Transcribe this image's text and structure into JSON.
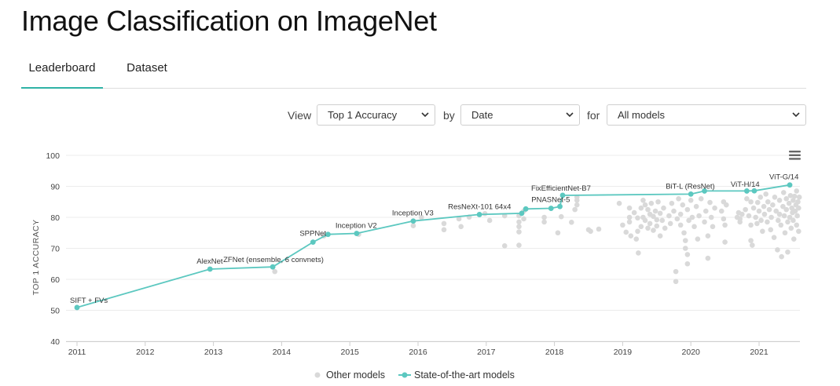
{
  "page": {
    "title": "Image Classification on ImageNet"
  },
  "tabs": [
    {
      "label": "Leaderboard",
      "active": true
    },
    {
      "label": "Dataset",
      "active": false
    }
  ],
  "controls": {
    "view_label": "View",
    "view_value": "Top 1 Accuracy",
    "by_label": "by",
    "by_value": "Date",
    "for_label": "for",
    "for_value": "All models"
  },
  "chart_menu_icon": "hamburger-menu-icon",
  "colors": {
    "accent": "#2fb3a6",
    "sota_line": "#5cc8c0",
    "other_points": "#d9d9d9"
  },
  "chart_data": {
    "type": "scatter",
    "ylabel": "TOP 1 ACCURACY",
    "xlabel": "",
    "ylim": [
      40,
      100
    ],
    "yticks": [
      40,
      50,
      60,
      70,
      80,
      90,
      100
    ],
    "xlim": [
      2011.0,
      2021.6
    ],
    "xticks": [
      "2011",
      "2012",
      "2013",
      "2014",
      "2015",
      "2016",
      "2017",
      "2018",
      "2019",
      "2020",
      "2021"
    ],
    "grid": true,
    "legend": {
      "placement": "bottom",
      "entries": [
        "Other models",
        "State-of-the-art models"
      ]
    },
    "series": [
      {
        "name": "State-of-the-art models",
        "style": "line",
        "points": [
          {
            "x": 2011.0,
            "y": 50.9,
            "label": "SIFT + FVs"
          },
          {
            "x": 2012.95,
            "y": 63.3,
            "label": "AlexNet"
          },
          {
            "x": 2013.87,
            "y": 64.0,
            "label": "ZFNet (ensemble, 6 convnets)"
          },
          {
            "x": 2014.46,
            "y": 72.0,
            "label": "SPPNet"
          },
          {
            "x": 2014.68,
            "y": 74.5,
            "label": ""
          },
          {
            "x": 2015.1,
            "y": 74.8,
            "label": "Inception V2"
          },
          {
            "x": 2015.93,
            "y": 78.8,
            "label": "Inception V3"
          },
          {
            "x": 2016.9,
            "y": 80.9,
            "label": "ResNeXt-101 64x4"
          },
          {
            "x": 2017.52,
            "y": 81.3,
            "label": ""
          },
          {
            "x": 2017.58,
            "y": 82.7,
            "label": ""
          },
          {
            "x": 2017.95,
            "y": 82.9,
            "label": "PNASNet-5"
          },
          {
            "x": 2018.08,
            "y": 83.5,
            "label": ""
          },
          {
            "x": 2018.12,
            "y": 87.1,
            "label": "FixEfficientNet-B7"
          },
          {
            "x": 2020.0,
            "y": 87.5,
            "label": "BiT-L (ResNet)"
          },
          {
            "x": 2020.2,
            "y": 88.5,
            "label": ""
          },
          {
            "x": 2020.82,
            "y": 88.5,
            "label": ""
          },
          {
            "x": 2020.93,
            "y": 88.55,
            "label": "ViT-H/14"
          },
          {
            "x": 2021.45,
            "y": 90.45,
            "label": "ViT-G/14"
          }
        ]
      },
      {
        "name": "Other models",
        "style": "points",
        "points": [
          {
            "x": 2013.9,
            "y": 62.5
          },
          {
            "x": 2014.62,
            "y": 74.0
          },
          {
            "x": 2015.13,
            "y": 74.5
          },
          {
            "x": 2015.93,
            "y": 77.3
          },
          {
            "x": 2016.05,
            "y": 80.0
          },
          {
            "x": 2016.38,
            "y": 78.0
          },
          {
            "x": 2016.38,
            "y": 76.0
          },
          {
            "x": 2016.6,
            "y": 79.5
          },
          {
            "x": 2016.63,
            "y": 77.0
          },
          {
            "x": 2016.75,
            "y": 80.1
          },
          {
            "x": 2016.98,
            "y": 81.2
          },
          {
            "x": 2017.05,
            "y": 79.0
          },
          {
            "x": 2017.27,
            "y": 80.5
          },
          {
            "x": 2017.27,
            "y": 70.8
          },
          {
            "x": 2017.48,
            "y": 80.5
          },
          {
            "x": 2017.48,
            "y": 78.5
          },
          {
            "x": 2017.48,
            "y": 77.0
          },
          {
            "x": 2017.48,
            "y": 75.3
          },
          {
            "x": 2017.48,
            "y": 71.0
          },
          {
            "x": 2017.55,
            "y": 82.0
          },
          {
            "x": 2017.55,
            "y": 79.5
          },
          {
            "x": 2017.85,
            "y": 80.0
          },
          {
            "x": 2017.85,
            "y": 78.5
          },
          {
            "x": 2018.05,
            "y": 75.0
          },
          {
            "x": 2018.1,
            "y": 80.2
          },
          {
            "x": 2018.25,
            "y": 78.4
          },
          {
            "x": 2018.3,
            "y": 82.5
          },
          {
            "x": 2018.33,
            "y": 84.0
          },
          {
            "x": 2018.33,
            "y": 85.5
          },
          {
            "x": 2018.33,
            "y": 86.5
          },
          {
            "x": 2018.5,
            "y": 76.0
          },
          {
            "x": 2018.53,
            "y": 75.5
          },
          {
            "x": 2018.65,
            "y": 76.2
          },
          {
            "x": 2018.95,
            "y": 84.5
          },
          {
            "x": 2019.0,
            "y": 77.5
          },
          {
            "x": 2019.05,
            "y": 75.2
          },
          {
            "x": 2019.1,
            "y": 80.0
          },
          {
            "x": 2019.1,
            "y": 83.0
          },
          {
            "x": 2019.1,
            "y": 78.5
          },
          {
            "x": 2019.12,
            "y": 74.0
          },
          {
            "x": 2019.17,
            "y": 81.5
          },
          {
            "x": 2019.2,
            "y": 73.0
          },
          {
            "x": 2019.22,
            "y": 79.8
          },
          {
            "x": 2019.22,
            "y": 75.5
          },
          {
            "x": 2019.23,
            "y": 68.5
          },
          {
            "x": 2019.27,
            "y": 83.0
          },
          {
            "x": 2019.27,
            "y": 77.0
          },
          {
            "x": 2019.3,
            "y": 80.0
          },
          {
            "x": 2019.3,
            "y": 85.5
          },
          {
            "x": 2019.33,
            "y": 84.0
          },
          {
            "x": 2019.33,
            "y": 79.0
          },
          {
            "x": 2019.37,
            "y": 82.5
          },
          {
            "x": 2019.37,
            "y": 76.5
          },
          {
            "x": 2019.4,
            "y": 81.0
          },
          {
            "x": 2019.4,
            "y": 78.0
          },
          {
            "x": 2019.42,
            "y": 84.5
          },
          {
            "x": 2019.45,
            "y": 80.3
          },
          {
            "x": 2019.45,
            "y": 75.8
          },
          {
            "x": 2019.48,
            "y": 82.0
          },
          {
            "x": 2019.5,
            "y": 79.2
          },
          {
            "x": 2019.5,
            "y": 77.2
          },
          {
            "x": 2019.52,
            "y": 85.0
          },
          {
            "x": 2019.55,
            "y": 81.3
          },
          {
            "x": 2019.55,
            "y": 74.0
          },
          {
            "x": 2019.58,
            "y": 79.0
          },
          {
            "x": 2019.6,
            "y": 83.0
          },
          {
            "x": 2019.62,
            "y": 76.5
          },
          {
            "x": 2019.68,
            "y": 80.5
          },
          {
            "x": 2019.7,
            "y": 78.0
          },
          {
            "x": 2019.72,
            "y": 84.5
          },
          {
            "x": 2019.75,
            "y": 82.0
          },
          {
            "x": 2019.78,
            "y": 62.5
          },
          {
            "x": 2019.78,
            "y": 59.3
          },
          {
            "x": 2019.8,
            "y": 79.5
          },
          {
            "x": 2019.82,
            "y": 86.0
          },
          {
            "x": 2019.85,
            "y": 77.5
          },
          {
            "x": 2019.85,
            "y": 81.0
          },
          {
            "x": 2019.88,
            "y": 84.0
          },
          {
            "x": 2019.9,
            "y": 75.0
          },
          {
            "x": 2019.92,
            "y": 72.5
          },
          {
            "x": 2019.92,
            "y": 70.0
          },
          {
            "x": 2019.95,
            "y": 68.0
          },
          {
            "x": 2019.95,
            "y": 65.0
          },
          {
            "x": 2019.95,
            "y": 82.5
          },
          {
            "x": 2019.97,
            "y": 79.0
          },
          {
            "x": 2020.0,
            "y": 85.5
          },
          {
            "x": 2020.02,
            "y": 80.0
          },
          {
            "x": 2020.05,
            "y": 77.0
          },
          {
            "x": 2020.08,
            "y": 83.5
          },
          {
            "x": 2020.1,
            "y": 73.0
          },
          {
            "x": 2020.12,
            "y": 80.5
          },
          {
            "x": 2020.15,
            "y": 86.0
          },
          {
            "x": 2020.2,
            "y": 78.5
          },
          {
            "x": 2020.22,
            "y": 82.0
          },
          {
            "x": 2020.25,
            "y": 66.8
          },
          {
            "x": 2020.25,
            "y": 74.0
          },
          {
            "x": 2020.28,
            "y": 84.8
          },
          {
            "x": 2020.3,
            "y": 80.0
          },
          {
            "x": 2020.32,
            "y": 77.0
          },
          {
            "x": 2020.35,
            "y": 83.0
          },
          {
            "x": 2020.45,
            "y": 82.0
          },
          {
            "x": 2020.48,
            "y": 85.0
          },
          {
            "x": 2020.48,
            "y": 79.5
          },
          {
            "x": 2020.5,
            "y": 77.5
          },
          {
            "x": 2020.5,
            "y": 72.0
          },
          {
            "x": 2020.52,
            "y": 84.0
          },
          {
            "x": 2020.68,
            "y": 80.0
          },
          {
            "x": 2020.7,
            "y": 81.5
          },
          {
            "x": 2020.72,
            "y": 79.5
          },
          {
            "x": 2020.72,
            "y": 78.5
          },
          {
            "x": 2020.75,
            "y": 81.0
          },
          {
            "x": 2020.8,
            "y": 82.5
          },
          {
            "x": 2020.82,
            "y": 86.0
          },
          {
            "x": 2020.85,
            "y": 80.5
          },
          {
            "x": 2020.88,
            "y": 85.0
          },
          {
            "x": 2020.88,
            "y": 77.5
          },
          {
            "x": 2020.88,
            "y": 72.5
          },
          {
            "x": 2020.9,
            "y": 71.0
          },
          {
            "x": 2020.92,
            "y": 83.0
          },
          {
            "x": 2020.95,
            "y": 80.0
          },
          {
            "x": 2020.97,
            "y": 78.0
          },
          {
            "x": 2020.98,
            "y": 84.8
          },
          {
            "x": 2021.0,
            "y": 82.0
          },
          {
            "x": 2021.02,
            "y": 86.5
          },
          {
            "x": 2021.03,
            "y": 79.0
          },
          {
            "x": 2021.05,
            "y": 75.5
          },
          {
            "x": 2021.07,
            "y": 83.5
          },
          {
            "x": 2021.08,
            "y": 81.0
          },
          {
            "x": 2021.1,
            "y": 87.5
          },
          {
            "x": 2021.12,
            "y": 78.5
          },
          {
            "x": 2021.13,
            "y": 85.0
          },
          {
            "x": 2021.15,
            "y": 82.5
          },
          {
            "x": 2021.17,
            "y": 76.0
          },
          {
            "x": 2021.18,
            "y": 80.0
          },
          {
            "x": 2021.2,
            "y": 84.0
          },
          {
            "x": 2021.22,
            "y": 73.5
          },
          {
            "x": 2021.23,
            "y": 86.5
          },
          {
            "x": 2021.25,
            "y": 82.0
          },
          {
            "x": 2021.27,
            "y": 69.5
          },
          {
            "x": 2021.28,
            "y": 79.0
          },
          {
            "x": 2021.3,
            "y": 85.5
          },
          {
            "x": 2021.3,
            "y": 81.0
          },
          {
            "x": 2021.32,
            "y": 77.5
          },
          {
            "x": 2021.33,
            "y": 67.3
          },
          {
            "x": 2021.35,
            "y": 83.5
          },
          {
            "x": 2021.36,
            "y": 88.0
          },
          {
            "x": 2021.37,
            "y": 80.5
          },
          {
            "x": 2021.38,
            "y": 75.0
          },
          {
            "x": 2021.4,
            "y": 86.0
          },
          {
            "x": 2021.4,
            "y": 82.5
          },
          {
            "x": 2021.42,
            "y": 78.5
          },
          {
            "x": 2021.42,
            "y": 68.8
          },
          {
            "x": 2021.44,
            "y": 84.5
          },
          {
            "x": 2021.45,
            "y": 80.0
          },
          {
            "x": 2021.46,
            "y": 87.0
          },
          {
            "x": 2021.47,
            "y": 76.5
          },
          {
            "x": 2021.48,
            "y": 83.0
          },
          {
            "x": 2021.49,
            "y": 81.5
          },
          {
            "x": 2021.5,
            "y": 85.5
          },
          {
            "x": 2021.5,
            "y": 79.0
          },
          {
            "x": 2021.51,
            "y": 73.0
          },
          {
            "x": 2021.52,
            "y": 86.8
          },
          {
            "x": 2021.53,
            "y": 82.0
          },
          {
            "x": 2021.54,
            "y": 84.0
          },
          {
            "x": 2021.55,
            "y": 77.5
          },
          {
            "x": 2021.55,
            "y": 88.5
          },
          {
            "x": 2021.56,
            "y": 80.5
          },
          {
            "x": 2021.57,
            "y": 85.0
          },
          {
            "x": 2021.58,
            "y": 83.0
          },
          {
            "x": 2021.58,
            "y": 75.5
          },
          {
            "x": 2021.59,
            "y": 86.5
          }
        ]
      }
    ]
  }
}
